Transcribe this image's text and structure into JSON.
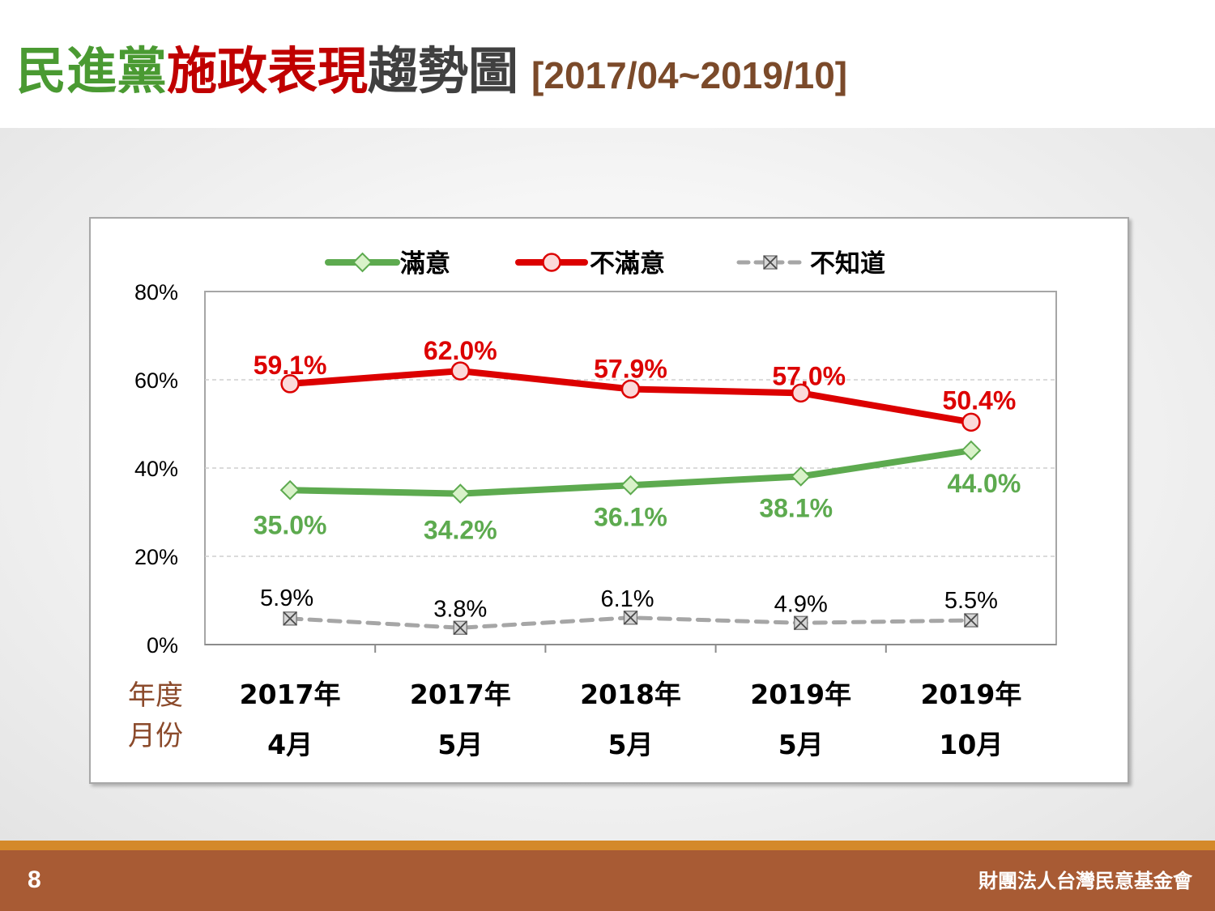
{
  "slide": {
    "title_part1": "民進黨",
    "title_part2": "施政表現",
    "title_part3": "趨勢圖",
    "title_range": "[2017/04~2019/10]",
    "page_number": "8",
    "organization": "財團法人台灣民意基金會"
  },
  "colors": {
    "satisfied": "#5daa4f",
    "dissatisfied": "#dc0000",
    "unknown": "#a6a6a6",
    "footer": "#a85b34",
    "footer_stripe": "#d4892a"
  },
  "chart_data": {
    "type": "line",
    "categories": [
      "2017年 4月",
      "2017年 5月",
      "2018年 5月",
      "2019年 5月",
      "2019年 10月"
    ],
    "category_lines": [
      [
        "2017年",
        "4月"
      ],
      [
        "2017年",
        "5月"
      ],
      [
        "2018年",
        "5月"
      ],
      [
        "2019年",
        "5月"
      ],
      [
        "2019年",
        "10月"
      ]
    ],
    "axis_title_lines": [
      "年度",
      "月份"
    ],
    "y_ticks": [
      "0%",
      "20%",
      "40%",
      "60%",
      "80%"
    ],
    "ylim": [
      0,
      80
    ],
    "grid": true,
    "legend_position": "top",
    "series": [
      {
        "name": "滿意",
        "values": [
          35.0,
          34.2,
          36.1,
          38.1,
          44.0
        ],
        "labels": [
          "35.0%",
          "34.2%",
          "36.1%",
          "38.1%",
          "44.0%"
        ],
        "marker": "diamond",
        "style": "solid",
        "label_side": "below"
      },
      {
        "name": "不滿意",
        "values": [
          59.1,
          62.0,
          57.9,
          57.0,
          50.4
        ],
        "labels": [
          "59.1%",
          "62.0%",
          "57.9%",
          "57.0%",
          "50.4%"
        ],
        "marker": "circle",
        "style": "solid",
        "label_side": "above"
      },
      {
        "name": "不知道",
        "values": [
          5.9,
          3.8,
          6.1,
          4.9,
          5.5
        ],
        "labels": [
          "5.9%",
          "3.8%",
          "6.1%",
          "4.9%",
          "5.5%"
        ],
        "marker": "x-box",
        "style": "dashed",
        "label_side": "above"
      }
    ]
  }
}
